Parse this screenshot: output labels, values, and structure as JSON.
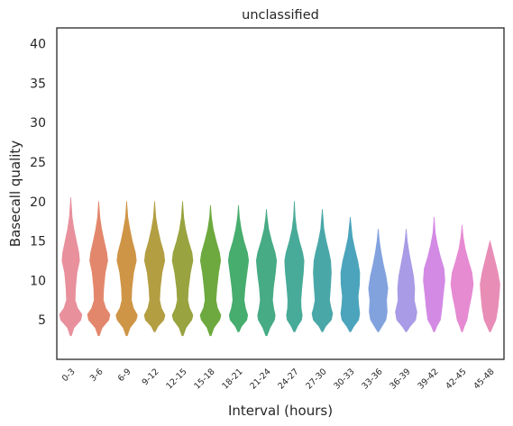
{
  "chart_data": {
    "type": "violin",
    "title": "unclassified",
    "xlabel": "Interval (hours)",
    "ylabel": "Basecall quality",
    "ylim": [
      0,
      42
    ],
    "yticks": [
      5,
      10,
      15,
      20,
      25,
      30,
      35,
      40
    ],
    "grid": false,
    "categories": [
      "0-3",
      "3-6",
      "6-9",
      "9-12",
      "12-15",
      "15-18",
      "18-21",
      "21-24",
      "24-27",
      "27-30",
      "30-33",
      "33-36",
      "36-39",
      "39-42",
      "42-45",
      "45-48"
    ],
    "colors": [
      "#e8909c",
      "#e3876c",
      "#cf9547",
      "#b39e42",
      "#99a33f",
      "#6da93e",
      "#47ad6e",
      "#47ab85",
      "#48aa98",
      "#4aa7a8",
      "#4ba4bc",
      "#82a2de",
      "#a99be6",
      "#d38ae4",
      "#e68ad2",
      "#e88db6"
    ],
    "violins": [
      {
        "min": 3.0,
        "max": 20.5,
        "profile": [
          [
            3.0,
            0.05
          ],
          [
            4.0,
            0.28
          ],
          [
            5.0,
            0.9
          ],
          [
            5.7,
            1.0
          ],
          [
            6.5,
            0.6
          ],
          [
            7.5,
            0.38
          ],
          [
            9.0,
            0.42
          ],
          [
            11.0,
            0.55
          ],
          [
            12.5,
            0.78
          ],
          [
            13.5,
            0.72
          ],
          [
            15.0,
            0.5
          ],
          [
            16.5,
            0.28
          ],
          [
            18.0,
            0.12
          ],
          [
            20.5,
            0.0
          ]
        ]
      },
      {
        "min": 3.0,
        "max": 20.0,
        "profile": [
          [
            3.0,
            0.05
          ],
          [
            4.0,
            0.3
          ],
          [
            5.0,
            0.9
          ],
          [
            5.7,
            1.0
          ],
          [
            6.5,
            0.62
          ],
          [
            7.5,
            0.4
          ],
          [
            9.0,
            0.44
          ],
          [
            11.0,
            0.58
          ],
          [
            12.5,
            0.8
          ],
          [
            13.5,
            0.72
          ],
          [
            15.0,
            0.48
          ],
          [
            16.5,
            0.26
          ],
          [
            18.0,
            0.1
          ],
          [
            20.0,
            0.0
          ]
        ]
      },
      {
        "min": 3.0,
        "max": 20.0,
        "profile": [
          [
            3.0,
            0.05
          ],
          [
            4.0,
            0.3
          ],
          [
            5.0,
            0.85
          ],
          [
            5.6,
            0.95
          ],
          [
            6.5,
            0.6
          ],
          [
            7.5,
            0.42
          ],
          [
            9.0,
            0.46
          ],
          [
            11.0,
            0.62
          ],
          [
            12.5,
            0.86
          ],
          [
            13.5,
            0.78
          ],
          [
            15.0,
            0.5
          ],
          [
            16.5,
            0.28
          ],
          [
            18.0,
            0.1
          ],
          [
            20.0,
            0.0
          ]
        ]
      },
      {
        "min": 3.5,
        "max": 20.0,
        "profile": [
          [
            3.5,
            0.05
          ],
          [
            4.2,
            0.3
          ],
          [
            5.0,
            0.82
          ],
          [
            5.6,
            0.92
          ],
          [
            6.5,
            0.6
          ],
          [
            7.5,
            0.44
          ],
          [
            9.0,
            0.5
          ],
          [
            11.0,
            0.66
          ],
          [
            12.5,
            0.9
          ],
          [
            13.5,
            0.82
          ],
          [
            15.0,
            0.52
          ],
          [
            16.5,
            0.28
          ],
          [
            18.0,
            0.1
          ],
          [
            20.0,
            0.0
          ]
        ]
      },
      {
        "min": 3.0,
        "max": 20.0,
        "profile": [
          [
            3.0,
            0.05
          ],
          [
            4.0,
            0.3
          ],
          [
            5.0,
            0.82
          ],
          [
            5.6,
            0.92
          ],
          [
            6.5,
            0.62
          ],
          [
            7.5,
            0.46
          ],
          [
            9.0,
            0.52
          ],
          [
            11.0,
            0.7
          ],
          [
            12.5,
            0.92
          ],
          [
            13.5,
            0.84
          ],
          [
            15.0,
            0.52
          ],
          [
            16.5,
            0.26
          ],
          [
            18.0,
            0.1
          ],
          [
            20.0,
            0.0
          ]
        ]
      },
      {
        "min": 3.0,
        "max": 19.5,
        "profile": [
          [
            3.0,
            0.05
          ],
          [
            4.0,
            0.3
          ],
          [
            5.0,
            0.82
          ],
          [
            5.6,
            0.92
          ],
          [
            6.5,
            0.62
          ],
          [
            7.5,
            0.48
          ],
          [
            9.0,
            0.56
          ],
          [
            11.0,
            0.72
          ],
          [
            12.5,
            0.9
          ],
          [
            13.5,
            0.8
          ],
          [
            15.0,
            0.5
          ],
          [
            16.5,
            0.24
          ],
          [
            18.0,
            0.08
          ],
          [
            19.5,
            0.0
          ]
        ]
      },
      {
        "min": 3.5,
        "max": 19.5,
        "profile": [
          [
            3.5,
            0.05
          ],
          [
            4.2,
            0.28
          ],
          [
            5.0,
            0.74
          ],
          [
            5.6,
            0.82
          ],
          [
            6.5,
            0.62
          ],
          [
            7.5,
            0.5
          ],
          [
            9.0,
            0.58
          ],
          [
            11.0,
            0.76
          ],
          [
            12.5,
            0.9
          ],
          [
            13.5,
            0.8
          ],
          [
            15.0,
            0.48
          ],
          [
            16.5,
            0.24
          ],
          [
            18.0,
            0.08
          ],
          [
            19.5,
            0.0
          ]
        ]
      },
      {
        "min": 3.0,
        "max": 19.0,
        "profile": [
          [
            3.0,
            0.05
          ],
          [
            4.0,
            0.32
          ],
          [
            5.0,
            0.72
          ],
          [
            5.6,
            0.78
          ],
          [
            6.5,
            0.64
          ],
          [
            7.5,
            0.54
          ],
          [
            9.0,
            0.62
          ],
          [
            11.0,
            0.8
          ],
          [
            12.5,
            0.9
          ],
          [
            13.5,
            0.78
          ],
          [
            15.0,
            0.46
          ],
          [
            16.5,
            0.2
          ],
          [
            18.0,
            0.06
          ],
          [
            19.0,
            0.0
          ]
        ]
      },
      {
        "min": 3.5,
        "max": 20.0,
        "profile": [
          [
            3.5,
            0.05
          ],
          [
            4.2,
            0.28
          ],
          [
            5.0,
            0.64
          ],
          [
            5.6,
            0.7
          ],
          [
            6.5,
            0.6
          ],
          [
            7.5,
            0.58
          ],
          [
            9.0,
            0.66
          ],
          [
            11.0,
            0.8
          ],
          [
            12.5,
            0.86
          ],
          [
            13.5,
            0.74
          ],
          [
            15.0,
            0.44
          ],
          [
            16.5,
            0.2
          ],
          [
            18.0,
            0.07
          ],
          [
            20.0,
            0.0
          ]
        ]
      },
      {
        "min": 3.5,
        "max": 19.0,
        "profile": [
          [
            3.5,
            0.04
          ],
          [
            4.2,
            0.3
          ],
          [
            5.0,
            0.8
          ],
          [
            5.8,
            0.92
          ],
          [
            6.5,
            0.78
          ],
          [
            7.5,
            0.64
          ],
          [
            9.0,
            0.72
          ],
          [
            11.0,
            0.8
          ],
          [
            12.5,
            0.74
          ],
          [
            13.5,
            0.6
          ],
          [
            15.0,
            0.34
          ],
          [
            16.5,
            0.14
          ],
          [
            19.0,
            0.0
          ]
        ]
      },
      {
        "min": 3.5,
        "max": 18.0,
        "profile": [
          [
            3.5,
            0.04
          ],
          [
            4.2,
            0.32
          ],
          [
            5.0,
            0.74
          ],
          [
            5.8,
            0.84
          ],
          [
            7.0,
            0.74
          ],
          [
            8.0,
            0.7
          ],
          [
            9.5,
            0.82
          ],
          [
            11.0,
            0.84
          ],
          [
            12.5,
            0.66
          ],
          [
            14.0,
            0.4
          ],
          [
            15.5,
            0.18
          ],
          [
            18.0,
            0.0
          ]
        ]
      },
      {
        "min": 3.5,
        "max": 16.5,
        "profile": [
          [
            3.5,
            0.04
          ],
          [
            4.2,
            0.34
          ],
          [
            5.0,
            0.68
          ],
          [
            6.0,
            0.8
          ],
          [
            7.5,
            0.74
          ],
          [
            9.0,
            0.86
          ],
          [
            10.5,
            0.7
          ],
          [
            12.0,
            0.46
          ],
          [
            13.5,
            0.26
          ],
          [
            15.0,
            0.1
          ],
          [
            16.5,
            0.0
          ]
        ]
      },
      {
        "min": 3.5,
        "max": 16.5,
        "profile": [
          [
            3.5,
            0.04
          ],
          [
            4.2,
            0.36
          ],
          [
            5.0,
            0.84
          ],
          [
            6.0,
            0.96
          ],
          [
            7.5,
            0.72
          ],
          [
            9.0,
            0.76
          ],
          [
            10.5,
            0.66
          ],
          [
            12.0,
            0.46
          ],
          [
            13.5,
            0.26
          ],
          [
            15.0,
            0.1
          ],
          [
            16.5,
            0.0
          ]
        ]
      },
      {
        "min": 3.5,
        "max": 18.0,
        "profile": [
          [
            3.5,
            0.04
          ],
          [
            4.2,
            0.24
          ],
          [
            5.0,
            0.56
          ],
          [
            6.5,
            0.7
          ],
          [
            8.0,
            0.8
          ],
          [
            10.0,
            0.96
          ],
          [
            11.5,
            0.88
          ],
          [
            13.0,
            0.56
          ],
          [
            14.5,
            0.3
          ],
          [
            16.0,
            0.1
          ],
          [
            18.0,
            0.0
          ]
        ]
      },
      {
        "min": 3.5,
        "max": 17.0,
        "profile": [
          [
            3.5,
            0.04
          ],
          [
            4.2,
            0.2
          ],
          [
            5.0,
            0.44
          ],
          [
            6.5,
            0.62
          ],
          [
            8.0,
            0.84
          ],
          [
            9.5,
            1.0
          ],
          [
            11.0,
            0.88
          ],
          [
            12.5,
            0.56
          ],
          [
            14.0,
            0.28
          ],
          [
            15.5,
            0.1
          ],
          [
            17.0,
            0.0
          ]
        ]
      },
      {
        "min": 3.5,
        "max": 15.0,
        "profile": [
          [
            3.5,
            0.04
          ],
          [
            4.2,
            0.26
          ],
          [
            5.0,
            0.52
          ],
          [
            6.5,
            0.7
          ],
          [
            8.0,
            0.8
          ],
          [
            9.5,
            0.88
          ],
          [
            11.0,
            0.7
          ],
          [
            12.5,
            0.44
          ],
          [
            14.0,
            0.18
          ],
          [
            15.0,
            0.0
          ]
        ]
      }
    ]
  }
}
